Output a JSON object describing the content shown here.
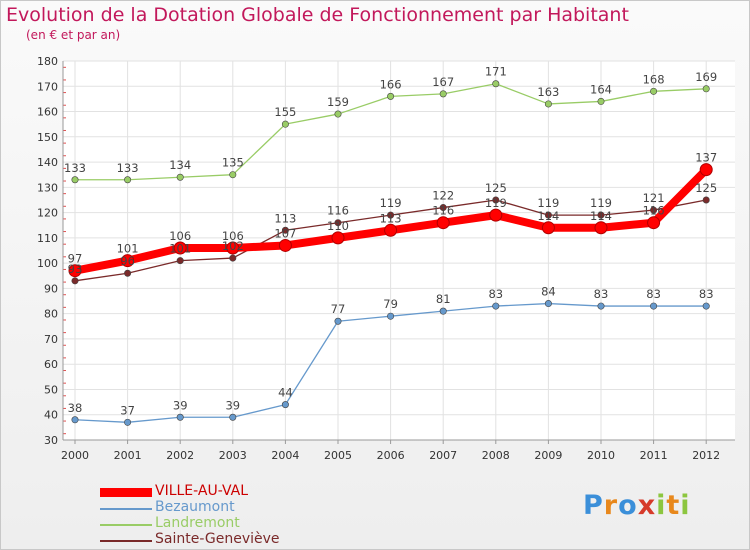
{
  "chart_data": {
    "type": "line",
    "title": "Evolution de la Dotation Globale de Fonctionnement par Habitant",
    "subtitle": "(en € et par an)",
    "x": [
      "2000",
      "2001",
      "2002",
      "2003",
      "2004",
      "2005",
      "2006",
      "2007",
      "2008",
      "2009",
      "2010",
      "2011",
      "2012"
    ],
    "ylim": [
      30,
      180
    ],
    "yticks": [
      30,
      40,
      50,
      60,
      70,
      80,
      90,
      100,
      110,
      120,
      130,
      140,
      150,
      160,
      170,
      180
    ],
    "grid": true,
    "legend_position": "bottom-left",
    "series": [
      {
        "name": "VILLE-AU-VAL",
        "color": "#ff0000",
        "values": [
          97,
          101,
          106,
          106,
          107,
          110,
          113,
          116,
          119,
          114,
          114,
          116,
          137
        ],
        "labels": [
          "97",
          "101",
          "106",
          "106",
          "107",
          "110",
          "113",
          "116",
          "119",
          "114",
          "114",
          "116",
          "137"
        ]
      },
      {
        "name": "Bezaumont",
        "color": "#6699cc",
        "values": [
          38,
          37,
          39,
          39,
          44,
          77,
          79,
          81,
          83,
          84,
          83,
          83,
          83
        ],
        "labels": [
          "38",
          "37",
          "39",
          "39",
          "44",
          "77",
          "79",
          "81",
          "83",
          "84",
          "83",
          "83",
          "83"
        ]
      },
      {
        "name": "Landremont",
        "color": "#99cc66",
        "values": [
          133,
          133,
          134,
          135,
          155,
          159,
          166,
          167,
          171,
          163,
          164,
          168,
          169
        ],
        "labels": [
          "133",
          "133",
          "134",
          "135",
          "155",
          "159",
          "166",
          "167",
          "171",
          "163",
          "164",
          "168",
          "169"
        ]
      },
      {
        "name": "Sainte-Geneviève",
        "color": "#7a2a2a",
        "values": [
          93,
          96,
          101,
          102,
          113,
          116,
          119,
          122,
          125,
          119,
          119,
          121,
          125
        ],
        "labels": [
          "93",
          "96",
          "101",
          "102",
          "113",
          "116",
          "119",
          "122",
          "125",
          "119",
          "119",
          "121",
          "125"
        ]
      }
    ]
  },
  "legend": {
    "items": [
      {
        "label": "VILLE-AU-VAL",
        "color": "#ff0000"
      },
      {
        "label": "Bezaumont",
        "color": "#6699cc"
      },
      {
        "label": "Landremont",
        "color": "#99cc66"
      },
      {
        "label": "Sainte-Geneviève",
        "color": "#7a2a2a"
      }
    ]
  },
  "brand": {
    "name": "Proxiti",
    "letters": [
      {
        "ch": "P",
        "color": "#3b8fd9"
      },
      {
        "ch": "r",
        "color": "#e8881c"
      },
      {
        "ch": "o",
        "color": "#3b8fd9"
      },
      {
        "ch": "x",
        "color": "#d63a2a"
      },
      {
        "ch": "i",
        "color": "#8cc63f"
      },
      {
        "ch": "t",
        "color": "#e8881c"
      },
      {
        "ch": "i",
        "color": "#8cc63f"
      }
    ]
  }
}
